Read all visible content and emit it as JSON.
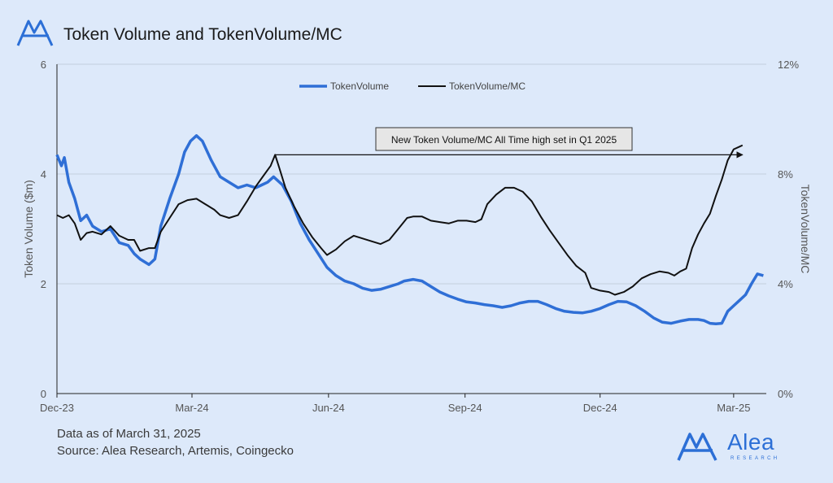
{
  "header": {
    "title": "Token Volume and TokenVolume/MC"
  },
  "footer": {
    "date_note": "Data as of March 31, 2025",
    "source_note": "Source: Alea Research, Artemis, Coingecko"
  },
  "brand": {
    "name": "Alea",
    "subtitle": "RESEARCH",
    "icon": "alea-logo-icon",
    "color": "#2c6fd6"
  },
  "chart_data": {
    "type": "line",
    "title": "Token Volume and TokenVolume/MC",
    "x_ticks": [
      "Dec-23",
      "Mar-24",
      "Jun-24",
      "Sep-24",
      "Dec-24",
      "Mar-25"
    ],
    "x_range_days": [
      0,
      478
    ],
    "x_tick_days": [
      0,
      91,
      183,
      275,
      366,
      456
    ],
    "ylabel_left": "Token Volume ($m)",
    "ylabel_right": "TokenVolume/MC",
    "ylim_left": [
      0,
      6
    ],
    "ylim_right": [
      0,
      12
    ],
    "yticks_left": [
      "0",
      "2",
      "4",
      "6"
    ],
    "yticks_right": [
      "0%",
      "4%",
      "8%",
      "12%"
    ],
    "grid": true,
    "legend_position": "top-center",
    "annotation": {
      "text": "New Token Volume/MC All Time high set in Q1 2025",
      "arrow_from": [
        147,
        8.7
      ],
      "arrow_to": [
        462,
        8.7
      ]
    },
    "series": [
      {
        "name": "TokenVolume",
        "axis": "left",
        "color": "#2f6fd6",
        "points": [
          [
            0,
            4.35
          ],
          [
            3,
            4.15
          ],
          [
            5,
            4.3
          ],
          [
            8,
            3.85
          ],
          [
            12,
            3.55
          ],
          [
            16,
            3.15
          ],
          [
            20,
            3.25
          ],
          [
            24,
            3.05
          ],
          [
            30,
            2.95
          ],
          [
            36,
            3.0
          ],
          [
            42,
            2.75
          ],
          [
            48,
            2.7
          ],
          [
            52,
            2.55
          ],
          [
            56,
            2.45
          ],
          [
            62,
            2.35
          ],
          [
            66,
            2.45
          ],
          [
            70,
            3.05
          ],
          [
            76,
            3.55
          ],
          [
            82,
            4.0
          ],
          [
            86,
            4.4
          ],
          [
            90,
            4.6
          ],
          [
            94,
            4.7
          ],
          [
            98,
            4.6
          ],
          [
            104,
            4.25
          ],
          [
            110,
            3.95
          ],
          [
            116,
            3.85
          ],
          [
            122,
            3.75
          ],
          [
            128,
            3.8
          ],
          [
            134,
            3.75
          ],
          [
            138,
            3.8
          ],
          [
            142,
            3.85
          ],
          [
            146,
            3.95
          ],
          [
            152,
            3.8
          ],
          [
            158,
            3.5
          ],
          [
            164,
            3.1
          ],
          [
            170,
            2.8
          ],
          [
            176,
            2.55
          ],
          [
            182,
            2.3
          ],
          [
            188,
            2.15
          ],
          [
            194,
            2.05
          ],
          [
            200,
            2.0
          ],
          [
            206,
            1.92
          ],
          [
            212,
            1.88
          ],
          [
            218,
            1.9
          ],
          [
            224,
            1.95
          ],
          [
            230,
            2.0
          ],
          [
            234,
            2.05
          ],
          [
            240,
            2.08
          ],
          [
            246,
            2.05
          ],
          [
            252,
            1.95
          ],
          [
            258,
            1.85
          ],
          [
            264,
            1.78
          ],
          [
            270,
            1.72
          ],
          [
            276,
            1.67
          ],
          [
            282,
            1.65
          ],
          [
            288,
            1.62
          ],
          [
            294,
            1.6
          ],
          [
            300,
            1.57
          ],
          [
            306,
            1.6
          ],
          [
            312,
            1.65
          ],
          [
            318,
            1.68
          ],
          [
            324,
            1.68
          ],
          [
            330,
            1.62
          ],
          [
            336,
            1.55
          ],
          [
            342,
            1.5
          ],
          [
            348,
            1.48
          ],
          [
            354,
            1.47
          ],
          [
            360,
            1.5
          ],
          [
            366,
            1.55
          ],
          [
            372,
            1.62
          ],
          [
            378,
            1.68
          ],
          [
            384,
            1.67
          ],
          [
            390,
            1.6
          ],
          [
            396,
            1.5
          ],
          [
            402,
            1.38
          ],
          [
            408,
            1.3
          ],
          [
            414,
            1.28
          ],
          [
            420,
            1.32
          ],
          [
            426,
            1.35
          ],
          [
            432,
            1.35
          ],
          [
            436,
            1.33
          ],
          [
            440,
            1.28
          ],
          [
            444,
            1.27
          ],
          [
            448,
            1.28
          ],
          [
            452,
            1.5
          ],
          [
            456,
            1.6
          ],
          [
            460,
            1.7
          ],
          [
            464,
            1.8
          ],
          [
            468,
            2.0
          ],
          [
            472,
            2.18
          ],
          [
            476,
            2.15
          ]
        ]
      },
      {
        "name": "TokenVolume/MC",
        "axis": "right",
        "color": "#111111",
        "points": [
          [
            0,
            6.5
          ],
          [
            4,
            6.4
          ],
          [
            8,
            6.5
          ],
          [
            12,
            6.2
          ],
          [
            16,
            5.6
          ],
          [
            20,
            5.85
          ],
          [
            24,
            5.9
          ],
          [
            30,
            5.8
          ],
          [
            36,
            6.1
          ],
          [
            42,
            5.75
          ],
          [
            48,
            5.6
          ],
          [
            52,
            5.6
          ],
          [
            56,
            5.2
          ],
          [
            62,
            5.3
          ],
          [
            66,
            5.3
          ],
          [
            70,
            5.9
          ],
          [
            76,
            6.4
          ],
          [
            82,
            6.9
          ],
          [
            88,
            7.05
          ],
          [
            94,
            7.1
          ],
          [
            100,
            6.9
          ],
          [
            106,
            6.7
          ],
          [
            110,
            6.5
          ],
          [
            116,
            6.4
          ],
          [
            122,
            6.5
          ],
          [
            128,
            7.0
          ],
          [
            134,
            7.55
          ],
          [
            140,
            8.0
          ],
          [
            144,
            8.3
          ],
          [
            147,
            8.7
          ],
          [
            150,
            8.2
          ],
          [
            154,
            7.5
          ],
          [
            160,
            6.8
          ],
          [
            166,
            6.2
          ],
          [
            172,
            5.7
          ],
          [
            178,
            5.3
          ],
          [
            182,
            5.05
          ],
          [
            188,
            5.25
          ],
          [
            194,
            5.55
          ],
          [
            200,
            5.75
          ],
          [
            206,
            5.65
          ],
          [
            212,
            5.55
          ],
          [
            218,
            5.45
          ],
          [
            224,
            5.6
          ],
          [
            230,
            6.0
          ],
          [
            236,
            6.4
          ],
          [
            240,
            6.45
          ],
          [
            246,
            6.45
          ],
          [
            252,
            6.3
          ],
          [
            258,
            6.25
          ],
          [
            264,
            6.2
          ],
          [
            270,
            6.3
          ],
          [
            276,
            6.3
          ],
          [
            282,
            6.25
          ],
          [
            286,
            6.35
          ],
          [
            290,
            6.9
          ],
          [
            296,
            7.25
          ],
          [
            302,
            7.5
          ],
          [
            308,
            7.5
          ],
          [
            314,
            7.35
          ],
          [
            320,
            7.0
          ],
          [
            326,
            6.45
          ],
          [
            332,
            5.95
          ],
          [
            338,
            5.5
          ],
          [
            344,
            5.05
          ],
          [
            350,
            4.65
          ],
          [
            356,
            4.4
          ],
          [
            360,
            3.85
          ],
          [
            366,
            3.75
          ],
          [
            372,
            3.7
          ],
          [
            376,
            3.6
          ],
          [
            382,
            3.7
          ],
          [
            388,
            3.9
          ],
          [
            394,
            4.2
          ],
          [
            400,
            4.35
          ],
          [
            406,
            4.45
          ],
          [
            412,
            4.4
          ],
          [
            416,
            4.3
          ],
          [
            420,
            4.45
          ],
          [
            424,
            4.55
          ],
          [
            428,
            5.3
          ],
          [
            432,
            5.8
          ],
          [
            436,
            6.2
          ],
          [
            440,
            6.55
          ],
          [
            444,
            7.2
          ],
          [
            448,
            7.8
          ],
          [
            452,
            8.5
          ],
          [
            456,
            8.9
          ],
          [
            460,
            9.0
          ],
          [
            462,
            9.05
          ]
        ]
      }
    ]
  }
}
